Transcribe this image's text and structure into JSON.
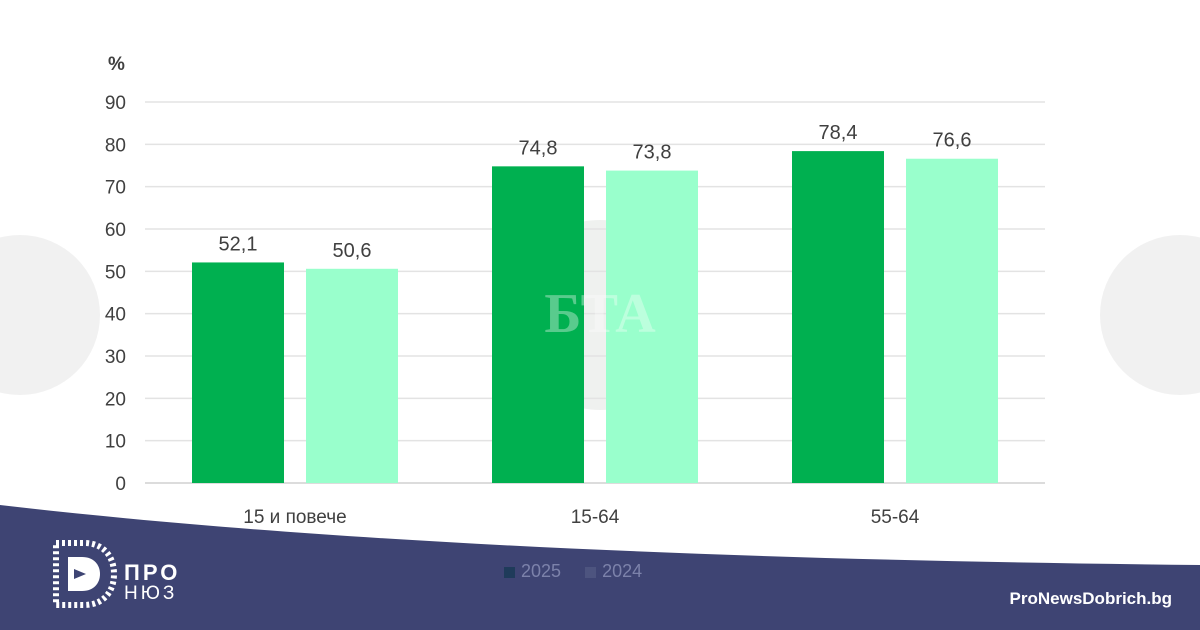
{
  "chart_data": {
    "type": "bar",
    "ylabel": "%",
    "ylim": [
      0,
      90
    ],
    "yticks": [
      0,
      10,
      20,
      30,
      40,
      50,
      60,
      70,
      80,
      90
    ],
    "categories": [
      "15 и повече",
      "15-64",
      "55-64"
    ],
    "series": [
      {
        "name": "2025",
        "values": [
          52.1,
          74.8,
          78.4
        ],
        "labels": [
          "52,1",
          "74,8",
          "78,4"
        ],
        "color": "#00b050"
      },
      {
        "name": "2024",
        "values": [
          50.6,
          73.8,
          76.6
        ],
        "labels": [
          "50,6",
          "73,8",
          "76,6"
        ],
        "color": "#99ffcc"
      }
    ],
    "grid": true,
    "legend_position": "bottom"
  },
  "watermark": {
    "text": "БТА",
    "icon": "bta-globe-logo"
  },
  "footer": {
    "background": "#3e4473",
    "logo_line1": "ПРО",
    "logo_line2": "НЮЗ",
    "logo_icon": "pronews-logo-icon",
    "site": "ProNewsDobrich.bg"
  }
}
